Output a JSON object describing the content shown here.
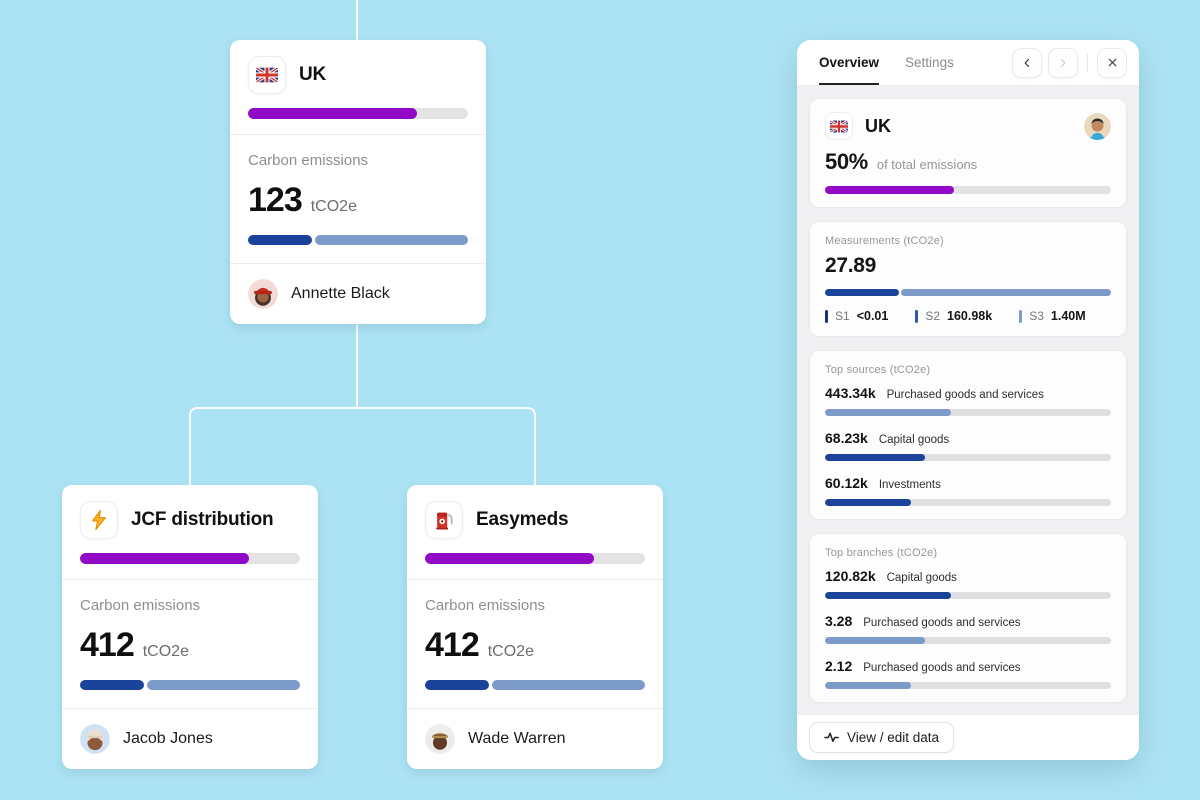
{
  "colors": {
    "background": "#ace3f4",
    "purple": "#9209c6",
    "purple_track": "#e3e3e5",
    "blue_dark": "#1a4399",
    "blue_light": "#7d9bc8",
    "bar_track": "#dfdfe2"
  },
  "tree": {
    "cards": [
      {
        "title": "UK",
        "icon": "uk-flag",
        "purple_fill_pct": 77,
        "category_label": "Carbon emissions",
        "value": "123",
        "unit": "tCO2e",
        "blue_dark_pct": 29,
        "owner": "Annette Black"
      },
      {
        "title": "JCF distribution",
        "icon": "lightning-bolt",
        "purple_fill_pct": 77,
        "category_label": "Carbon emissions",
        "value": "412",
        "unit": "tCO2e",
        "blue_dark_pct": 29,
        "owner": "Jacob Jones"
      },
      {
        "title": "Easymeds",
        "icon": "fuel-pump",
        "purple_fill_pct": 77,
        "category_label": "Carbon emissions",
        "value": "412",
        "unit": "tCO2e",
        "blue_dark_pct": 29,
        "owner": "Wade Warren"
      }
    ]
  },
  "panel": {
    "tabs": {
      "overview": "Overview",
      "settings": "Settings"
    },
    "summary": {
      "title": "UK",
      "icon": "uk-flag",
      "percent": "50%",
      "suffix": "of total emissions",
      "purple_fill_pct": 45
    },
    "measurements": {
      "label": "Measurements (tCO2e)",
      "value": "27.89",
      "dark_fill_pct": 26,
      "scopes": [
        {
          "label": "S1",
          "value": "<0.01",
          "color": "#17357c"
        },
        {
          "label": "S2",
          "value": "160.98k",
          "color": "#2d58a7"
        },
        {
          "label": "S3",
          "value": "1.40M",
          "color": "#7d9bc8"
        }
      ]
    },
    "top_sources": {
      "label": "Top sources (tCO2e)",
      "items": [
        {
          "value": "443.34k",
          "label": "Purchased goods and services",
          "fill_pct": 44,
          "color": "#7d9bc8"
        },
        {
          "value": "68.23k",
          "label": "Capital goods",
          "fill_pct": 35,
          "color": "#1a4399"
        },
        {
          "value": "60.12k",
          "label": "Investments",
          "fill_pct": 30,
          "color": "#1a4399"
        }
      ]
    },
    "top_branches": {
      "label": "Top branches (tCO2e)",
      "items": [
        {
          "value": "120.82k",
          "label": "Capital goods",
          "fill_pct": 44,
          "color": "#1a4399"
        },
        {
          "value": "3.28",
          "label": "Purchased goods and services",
          "fill_pct": 35,
          "color": "#7d9bc8"
        },
        {
          "value": "2.12",
          "label": "Purchased goods and services",
          "fill_pct": 30,
          "color": "#7d9bc8"
        }
      ]
    },
    "footer": {
      "view_edit_label": "View / edit data"
    }
  }
}
